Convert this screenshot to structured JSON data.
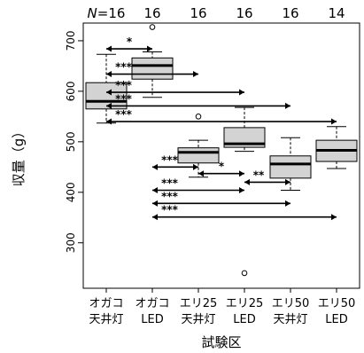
{
  "chart_data": {
    "type": "boxplot",
    "xlabel": "試験区",
    "ylabel": "収量（g）",
    "ylim": [
      210,
      735
    ],
    "yticks": [
      300,
      400,
      500,
      600,
      700
    ],
    "n_prefix": "N",
    "categories": [
      {
        "line1": "オガコ",
        "line2": "天井灯",
        "n": "=16"
      },
      {
        "line1": "オガコ",
        "line2": "LED",
        "n": "16"
      },
      {
        "line1": "エリ25",
        "line2": "天井灯",
        "n": "16"
      },
      {
        "line1": "エリ25",
        "line2": "LED",
        "n": "16"
      },
      {
        "line1": "エリ50",
        "line2": "天井灯",
        "n": "16"
      },
      {
        "line1": "エリ50",
        "line2": "LED",
        "n": "14"
      }
    ],
    "boxes": [
      {
        "min": 537,
        "q1": 565,
        "median": 580,
        "q3": 617,
        "max": 673,
        "outliers": []
      },
      {
        "min": 588,
        "q1": 624,
        "median": 651,
        "q3": 666,
        "max": 678,
        "outliers": [
          727
        ]
      },
      {
        "min": 430,
        "q1": 458,
        "median": 479,
        "q3": 488,
        "max": 503,
        "outliers": [
          550
        ]
      },
      {
        "min": 481,
        "q1": 489,
        "median": 496,
        "q3": 528,
        "max": 568,
        "outliers": [
          240
        ]
      },
      {
        "min": 404,
        "q1": 428,
        "median": 456,
        "q3": 472,
        "max": 508,
        "outliers": []
      },
      {
        "min": 447,
        "q1": 461,
        "median": 483,
        "q3": 503,
        "max": 530,
        "outliers": []
      }
    ],
    "significance": [
      {
        "from": 1,
        "to": 2,
        "y": 684,
        "label": "*"
      },
      {
        "from": 1,
        "to": 3,
        "y": 634,
        "label": "***"
      },
      {
        "from": 1,
        "to": 4,
        "y": 598,
        "label": "***"
      },
      {
        "from": 1,
        "to": 5,
        "y": 571,
        "label": "***"
      },
      {
        "from": 1,
        "to": 6,
        "y": 540,
        "label": "***"
      },
      {
        "from": 2,
        "to": 3,
        "y": 450,
        "label": "***"
      },
      {
        "from": 3,
        "to": 4,
        "y": 437,
        "label": "*"
      },
      {
        "from": 2,
        "to": 4,
        "y": 404,
        "label": "***"
      },
      {
        "from": 4,
        "to": 5,
        "y": 420,
        "label": "**"
      },
      {
        "from": 2,
        "to": 5,
        "y": 378,
        "label": "***"
      },
      {
        "from": 2,
        "to": 6,
        "y": 351,
        "label": "***"
      }
    ]
  }
}
